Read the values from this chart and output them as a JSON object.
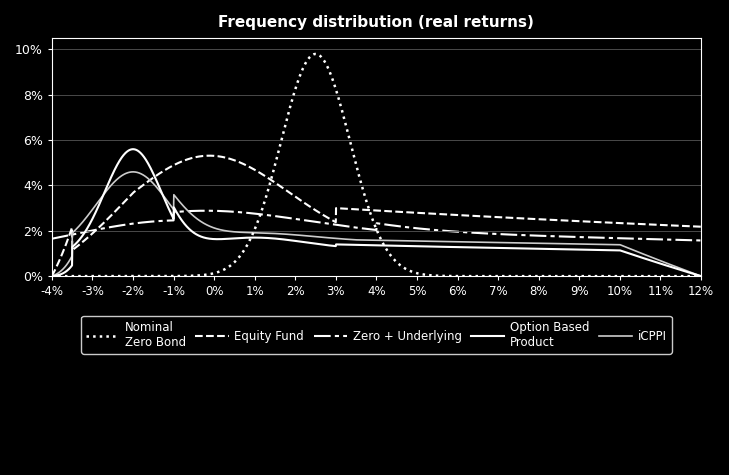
{
  "title": "Frequency distribution (real returns)",
  "background_color": "#000000",
  "plot_bg_color": "#000000",
  "text_color": "#ffffff",
  "xlim": [
    -0.04,
    0.12
  ],
  "ylim": [
    0.0,
    0.105
  ],
  "xticks": [
    -0.04,
    -0.03,
    -0.02,
    -0.01,
    0.0,
    0.01,
    0.02,
    0.03,
    0.04,
    0.05,
    0.06,
    0.07,
    0.08,
    0.09,
    0.1,
    0.11,
    0.12
  ],
  "xtick_labels": [
    "-4%",
    "-3%",
    "-2%",
    "-1%",
    "0%",
    "1%",
    "2%",
    "3%",
    "4%",
    "5%",
    "6%",
    "7%",
    "8%",
    "9%",
    "10%",
    "11%",
    "12%"
  ],
  "yticks": [
    0.0,
    0.02,
    0.04,
    0.06,
    0.08,
    0.1
  ],
  "ytick_labels": [
    "0%",
    "2%",
    "4%",
    "6%",
    "8%",
    "10%"
  ]
}
